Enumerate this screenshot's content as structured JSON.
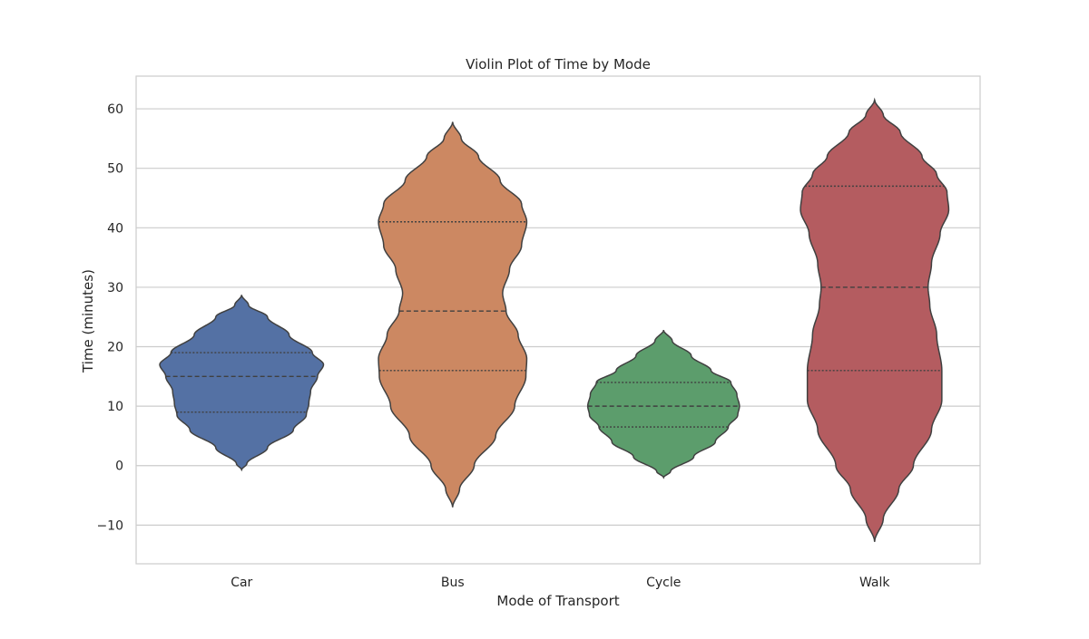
{
  "chart_data": {
    "type": "violin",
    "title": "Violin Plot of Time by Mode",
    "xlabel": "Mode of Transport",
    "ylabel": "Time (minutes)",
    "ylim": [
      -16.5,
      65.5
    ],
    "yticks": [
      -10,
      0,
      10,
      20,
      30,
      40,
      50,
      60
    ],
    "ytick_labels": [
      "−10",
      "0",
      "10",
      "20",
      "30",
      "40",
      "50",
      "60"
    ],
    "grid": true,
    "categories": [
      "Car",
      "Bus",
      "Cycle",
      "Walk"
    ],
    "colors": [
      "#5471a4",
      "#cc8862",
      "#5c9d6c",
      "#b45c60"
    ],
    "series": [
      {
        "category": "Car",
        "quartiles": [
          9,
          15,
          19
        ],
        "density": [
          [
            -0.7,
            0
          ],
          [
            0.3,
            0.06
          ],
          [
            3,
            0.3
          ],
          [
            6,
            0.6
          ],
          [
            8.5,
            0.75
          ],
          [
            10.5,
            0.78
          ],
          [
            12.5,
            0.8
          ],
          [
            15,
            0.88
          ],
          [
            17,
            0.95
          ],
          [
            19,
            0.82
          ],
          [
            22,
            0.55
          ],
          [
            25,
            0.3
          ],
          [
            27,
            0.08
          ],
          [
            28.7,
            0
          ]
        ]
      },
      {
        "category": "Bus",
        "quartiles": [
          16,
          26,
          41
        ],
        "density": [
          [
            -7,
            0
          ],
          [
            -4,
            0.08
          ],
          [
            0,
            0.25
          ],
          [
            5,
            0.5
          ],
          [
            10,
            0.72
          ],
          [
            15,
            0.85
          ],
          [
            18,
            0.86
          ],
          [
            22,
            0.76
          ],
          [
            26,
            0.62
          ],
          [
            29,
            0.58
          ],
          [
            33,
            0.66
          ],
          [
            37,
            0.8
          ],
          [
            41,
            0.86
          ],
          [
            44,
            0.8
          ],
          [
            48,
            0.55
          ],
          [
            52,
            0.3
          ],
          [
            55,
            0.1
          ],
          [
            57.8,
            0
          ]
        ]
      },
      {
        "category": "Cycle",
        "quartiles": [
          6.5,
          10,
          14
        ],
        "density": [
          [
            -2,
            0
          ],
          [
            -1,
            0.08
          ],
          [
            1.5,
            0.35
          ],
          [
            4,
            0.6
          ],
          [
            6.5,
            0.75
          ],
          [
            8.5,
            0.86
          ],
          [
            10,
            0.88
          ],
          [
            12,
            0.85
          ],
          [
            14,
            0.78
          ],
          [
            16,
            0.55
          ],
          [
            18.5,
            0.32
          ],
          [
            21,
            0.1
          ],
          [
            22.8,
            0
          ]
        ]
      },
      {
        "category": "Walk",
        "quartiles": [
          16,
          30,
          47
        ],
        "density": [
          [
            -12.8,
            0
          ],
          [
            -9,
            0.1
          ],
          [
            -4,
            0.28
          ],
          [
            0,
            0.45
          ],
          [
            6,
            0.66
          ],
          [
            11,
            0.78
          ],
          [
            16,
            0.78
          ],
          [
            22,
            0.72
          ],
          [
            27,
            0.64
          ],
          [
            30,
            0.62
          ],
          [
            34,
            0.66
          ],
          [
            39,
            0.76
          ],
          [
            43,
            0.86
          ],
          [
            46,
            0.84
          ],
          [
            49,
            0.72
          ],
          [
            52,
            0.55
          ],
          [
            56,
            0.3
          ],
          [
            59,
            0.1
          ],
          [
            61.5,
            0
          ]
        ]
      }
    ]
  }
}
